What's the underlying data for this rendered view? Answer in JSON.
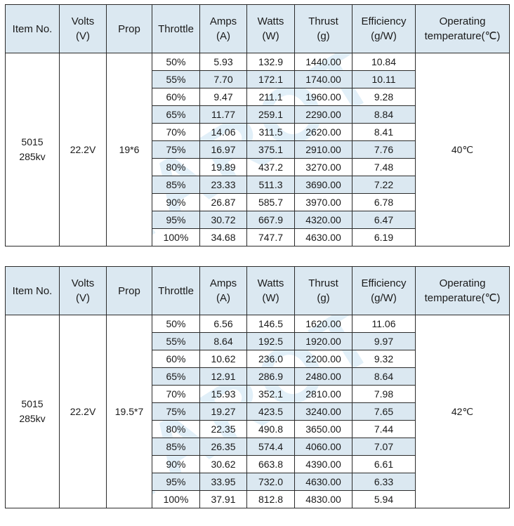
{
  "headers": [
    "Item No.",
    "Volts (V)",
    "Prop",
    "Throttle",
    "Amps (A)",
    "Watts (W)",
    "Thrust (g)",
    "Efficiency (g/W)",
    "Operating temperature(℃)"
  ],
  "header_lines": [
    [
      "Item No."
    ],
    [
      "Volts",
      "(V)"
    ],
    [
      "Prop"
    ],
    [
      "Throttle"
    ],
    [
      "Amps",
      "(A)"
    ],
    [
      "Watts",
      "(W)"
    ],
    [
      "Thrust",
      "(g)"
    ],
    [
      "Efficiency",
      "(g/W)"
    ],
    [
      "Operating",
      "temperature(℃)"
    ]
  ],
  "watermark": "TAROT",
  "tables": [
    {
      "item": [
        "5015",
        "285kv"
      ],
      "volts": "22.2V",
      "prop": "19*6",
      "temp": "40℃",
      "rows": [
        [
          "50%",
          "5.93",
          "132.9",
          "1440.00",
          "10.84"
        ],
        [
          "55%",
          "7.70",
          "172.1",
          "1740.00",
          "10.11"
        ],
        [
          "60%",
          "9.47",
          "211.1",
          "1960.00",
          "9.28"
        ],
        [
          "65%",
          "11.77",
          "259.1",
          "2290.00",
          "8.84"
        ],
        [
          "70%",
          "14.06",
          "311.5",
          "2620.00",
          "8.41"
        ],
        [
          "75%",
          "16.97",
          "375.1",
          "2910.00",
          "7.76"
        ],
        [
          "80%",
          "19.89",
          "437.2",
          "3270.00",
          "7.48"
        ],
        [
          "85%",
          "23.33",
          "511.3",
          "3690.00",
          "7.22"
        ],
        [
          "90%",
          "26.87",
          "585.7",
          "3970.00",
          "6.78"
        ],
        [
          "95%",
          "30.72",
          "667.9",
          "4320.00",
          "6.47"
        ],
        [
          "100%",
          "34.68",
          "747.7",
          "4630.00",
          "6.19"
        ]
      ]
    },
    {
      "item": [
        "5015",
        "285kv"
      ],
      "volts": "22.2V",
      "prop": "19.5*7",
      "temp": "42℃",
      "rows": [
        [
          "50%",
          "6.56",
          "146.5",
          "1620.00",
          "11.06"
        ],
        [
          "55%",
          "8.64",
          "192.5",
          "1920.00",
          "9.97"
        ],
        [
          "60%",
          "10.62",
          "236.0",
          "2200.00",
          "9.32"
        ],
        [
          "65%",
          "12.91",
          "286.9",
          "2480.00",
          "8.64"
        ],
        [
          "70%",
          "15.93",
          "352.1",
          "2810.00",
          "7.98"
        ],
        [
          "75%",
          "19.27",
          "423.5",
          "3240.00",
          "7.65"
        ],
        [
          "80%",
          "22.35",
          "490.8",
          "3650.00",
          "7.44"
        ],
        [
          "85%",
          "26.35",
          "574.4",
          "4060.00",
          "7.07"
        ],
        [
          "90%",
          "30.62",
          "663.8",
          "4390.00",
          "6.61"
        ],
        [
          "95%",
          "33.95",
          "732.0",
          "4630.00",
          "6.33"
        ],
        [
          "100%",
          "37.91",
          "812.8",
          "4830.00",
          "5.94"
        ]
      ]
    }
  ],
  "colors": {
    "header_bg": "#dbe8f1",
    "alt_row_bg": "#dbe8f1",
    "border": "#2b2b2b",
    "watermark": "#78b4e1"
  }
}
